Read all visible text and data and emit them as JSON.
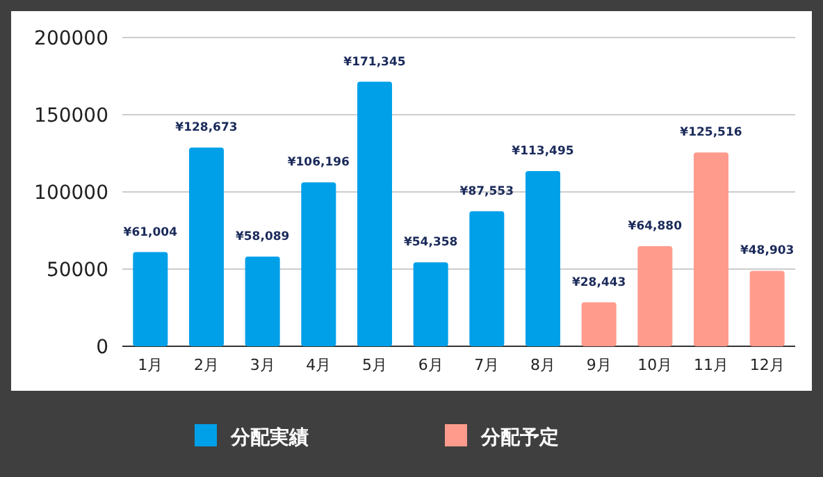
{
  "chart_data": {
    "type": "bar",
    "categories": [
      "1月",
      "2月",
      "3月",
      "4月",
      "5月",
      "6月",
      "7月",
      "8月",
      "9月",
      "10月",
      "11月",
      "12月"
    ],
    "series": [
      {
        "name": "分配実績",
        "color": "#00a0e9",
        "values": [
          61004,
          128673,
          58089,
          106196,
          171345,
          54358,
          87553,
          113495,
          null,
          null,
          null,
          null
        ],
        "value_labels": [
          "¥61,004",
          "¥128,673",
          "¥58,089",
          "¥106,196",
          "¥171,345",
          "¥54,358",
          "¥87,553",
          "¥113,495",
          null,
          null,
          null,
          null
        ]
      },
      {
        "name": "分配予定",
        "color": "#ff9b8d",
        "values": [
          null,
          null,
          null,
          null,
          null,
          null,
          null,
          null,
          28443,
          64880,
          125516,
          48903
        ],
        "value_labels": [
          null,
          null,
          null,
          null,
          null,
          null,
          null,
          null,
          "¥28,443",
          "¥64,880",
          "¥125,516",
          "¥48,903"
        ]
      }
    ],
    "ylim": [
      0,
      200000
    ],
    "yticks": [
      0,
      50000,
      100000,
      150000,
      200000
    ],
    "grid": "y",
    "legend": "bottom"
  }
}
